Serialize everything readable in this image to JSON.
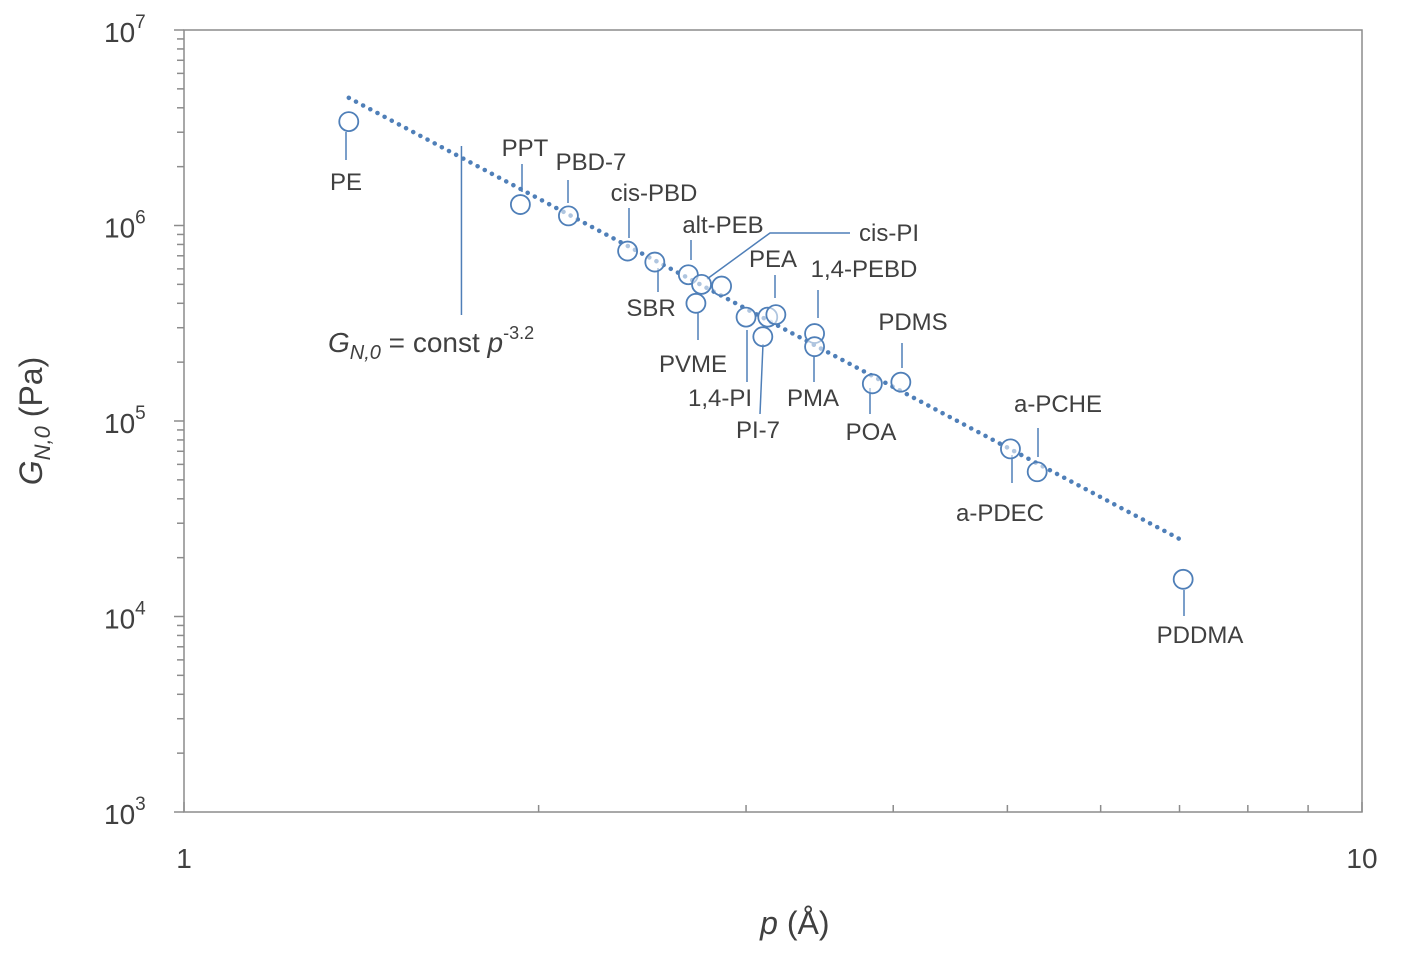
{
  "chart_data": {
    "type": "scatter",
    "x_scale": "log",
    "y_scale": "log",
    "xlim": [
      1,
      10
    ],
    "ylim": [
      1000,
      10000000
    ],
    "x_tick_labels": [
      {
        "value": 1,
        "label": "1"
      },
      {
        "value": 10,
        "label": "10"
      }
    ],
    "y_tick_labels": [
      {
        "value": 1000,
        "base": "10",
        "exp": "3"
      },
      {
        "value": 10000,
        "base": "10",
        "exp": "4"
      },
      {
        "value": 100000,
        "base": "10",
        "exp": "5"
      },
      {
        "value": 1000000,
        "base": "10",
        "exp": "6"
      },
      {
        "value": 10000000,
        "base": "10",
        "exp": "7"
      }
    ],
    "xlabel": {
      "var": "p",
      "rest": " (Å)"
    },
    "ylabel": {
      "var": "G",
      "sub": "N,0",
      "rest": " (Pa)"
    },
    "grid": false,
    "legend": "none",
    "series": [
      {
        "marker": "open-circle",
        "color": "#4f7fb8",
        "points": [
          {
            "label": "PE",
            "x": 1.38,
            "y": 3400000
          },
          {
            "label": "PPT",
            "x": 1.93,
            "y": 1280000
          },
          {
            "label": "PBD-7",
            "x": 2.12,
            "y": 1120000
          },
          {
            "label": "cis-PBD",
            "x": 2.38,
            "y": 740000
          },
          {
            "label": "SBR",
            "x": 2.51,
            "y": 650000
          },
          {
            "label": "alt-PEB",
            "x": 2.68,
            "y": 560000
          },
          {
            "label": "cis-PI",
            "x": 2.75,
            "y": 500000
          },
          {
            "label": "PEA",
            "x": 2.86,
            "y": 490000
          },
          {
            "label": "PVME",
            "x": 2.72,
            "y": 400000
          },
          {
            "label": "1,4-PI",
            "x": 3.0,
            "y": 340000
          },
          {
            "label": "PI-7",
            "x": 3.1,
            "y": 270000
          },
          {
            "label": "",
            "x": 3.13,
            "y": 340000
          },
          {
            "label": "",
            "x": 3.18,
            "y": 350000
          },
          {
            "label": "1,4-PEBD",
            "x": 3.43,
            "y": 280000
          },
          {
            "label": "PMA",
            "x": 3.43,
            "y": 240000
          },
          {
            "label": "POA",
            "x": 3.84,
            "y": 155000
          },
          {
            "label": "PDMS",
            "x": 4.06,
            "y": 158000
          },
          {
            "label": "a-PDEC",
            "x": 5.03,
            "y": 72000
          },
          {
            "label": "a-PCHE",
            "x": 5.3,
            "y": 55000
          },
          {
            "label": "PDDMA",
            "x": 7.05,
            "y": 15500
          }
        ]
      }
    ],
    "trendline": {
      "style": "dotted",
      "color": "#4f7fb8",
      "exponent": -3.2,
      "x_range": [
        1.38,
        7.0
      ],
      "y_at_start": 4500000,
      "label": {
        "var_main": "G",
        "var_sub": "N,0",
        "text": " = const ",
        "var_p": "p",
        "exp": "-3.2"
      }
    }
  }
}
